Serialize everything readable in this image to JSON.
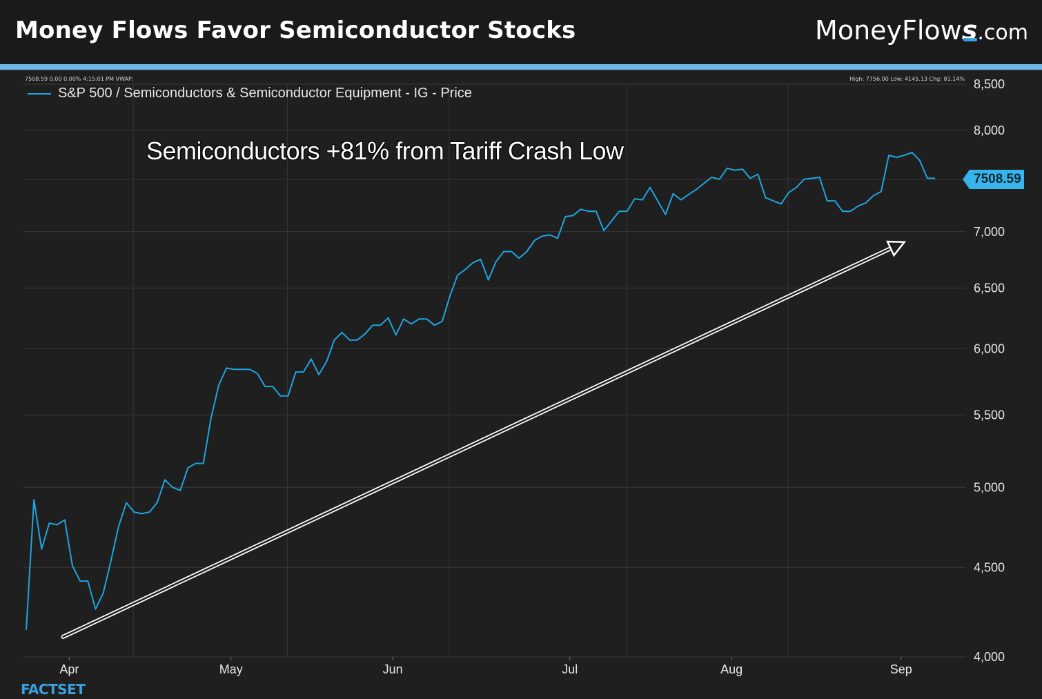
{
  "header": {
    "title": "Money Flows Favor Semiconductor Stocks",
    "brand_main": "MoneyFlow",
    "brand_s": "s",
    "brand_suffix": ".com"
  },
  "info": {
    "left": "7508.59 0.00 0.00% 4:15:01 PM VWAP:",
    "right": "High: 7756.00 Low: 4145.13 Chg: 81.14%"
  },
  "legend": {
    "label": "S&P 500 / Semiconductors & Semiconductor Equipment - IG - Price"
  },
  "annotation": "Semiconductors +81% from Tariff Crash Low",
  "last_price_label": "7508.59",
  "source": "FACTSET",
  "colors": {
    "line": "#1fa5e0",
    "accent": "#6fb4e6",
    "price_tag": "#38b4ea"
  },
  "chart_data": {
    "type": "line",
    "y_scale": "log",
    "ylim": [
      4000,
      8500
    ],
    "y_ticks": [
      {
        "value": 4000,
        "label": "4,000"
      },
      {
        "value": 4500,
        "label": "4,500"
      },
      {
        "value": 5000,
        "label": "5,000"
      },
      {
        "value": 5500,
        "label": "5,500"
      },
      {
        "value": 6000,
        "label": "6,000"
      },
      {
        "value": 6500,
        "label": "6,500"
      },
      {
        "value": 7000,
        "label": "7,000"
      },
      {
        "value": 7500,
        "label": ""
      },
      {
        "value": 8000,
        "label": "8,000"
      },
      {
        "value": 8500,
        "label": "8,500"
      }
    ],
    "x_ticks": [
      "Apr",
      "May",
      "Jun",
      "Jul",
      "Aug",
      "Sep"
    ],
    "series": [
      {
        "name": "S&P 500 / Semiconductors & Semiconductor Equipment - IG - Price",
        "values": [
          4145,
          4920,
          4610,
          4770,
          4760,
          4790,
          4510,
          4420,
          4420,
          4260,
          4350,
          4540,
          4750,
          4900,
          4840,
          4830,
          4840,
          4900,
          5050,
          5000,
          4980,
          5130,
          5160,
          5160,
          5480,
          5720,
          5850,
          5840,
          5840,
          5840,
          5810,
          5710,
          5710,
          5640,
          5640,
          5820,
          5820,
          5920,
          5800,
          5900,
          6070,
          6130,
          6070,
          6070,
          6120,
          6190,
          6190,
          6250,
          6110,
          6240,
          6200,
          6240,
          6240,
          6190,
          6220,
          6430,
          6610,
          6660,
          6720,
          6750,
          6570,
          6730,
          6820,
          6820,
          6760,
          6820,
          6920,
          6960,
          6970,
          6940,
          7140,
          7150,
          7210,
          7190,
          7190,
          7010,
          7100,
          7190,
          7190,
          7310,
          7300,
          7420,
          7290,
          7160,
          7360,
          7300,
          7350,
          7400,
          7460,
          7520,
          7500,
          7610,
          7590,
          7600,
          7510,
          7550,
          7320,
          7290,
          7260,
          7370,
          7420,
          7500,
          7510,
          7520,
          7290,
          7290,
          7190,
          7190,
          7240,
          7270,
          7340,
          7380,
          7740,
          7720,
          7740,
          7770,
          7690,
          7510,
          7510
        ]
      }
    ],
    "annotation_arrow": {
      "from": {
        "index": 3,
        "value": 4070
      },
      "to": {
        "index": 113,
        "value": 6940
      }
    }
  }
}
